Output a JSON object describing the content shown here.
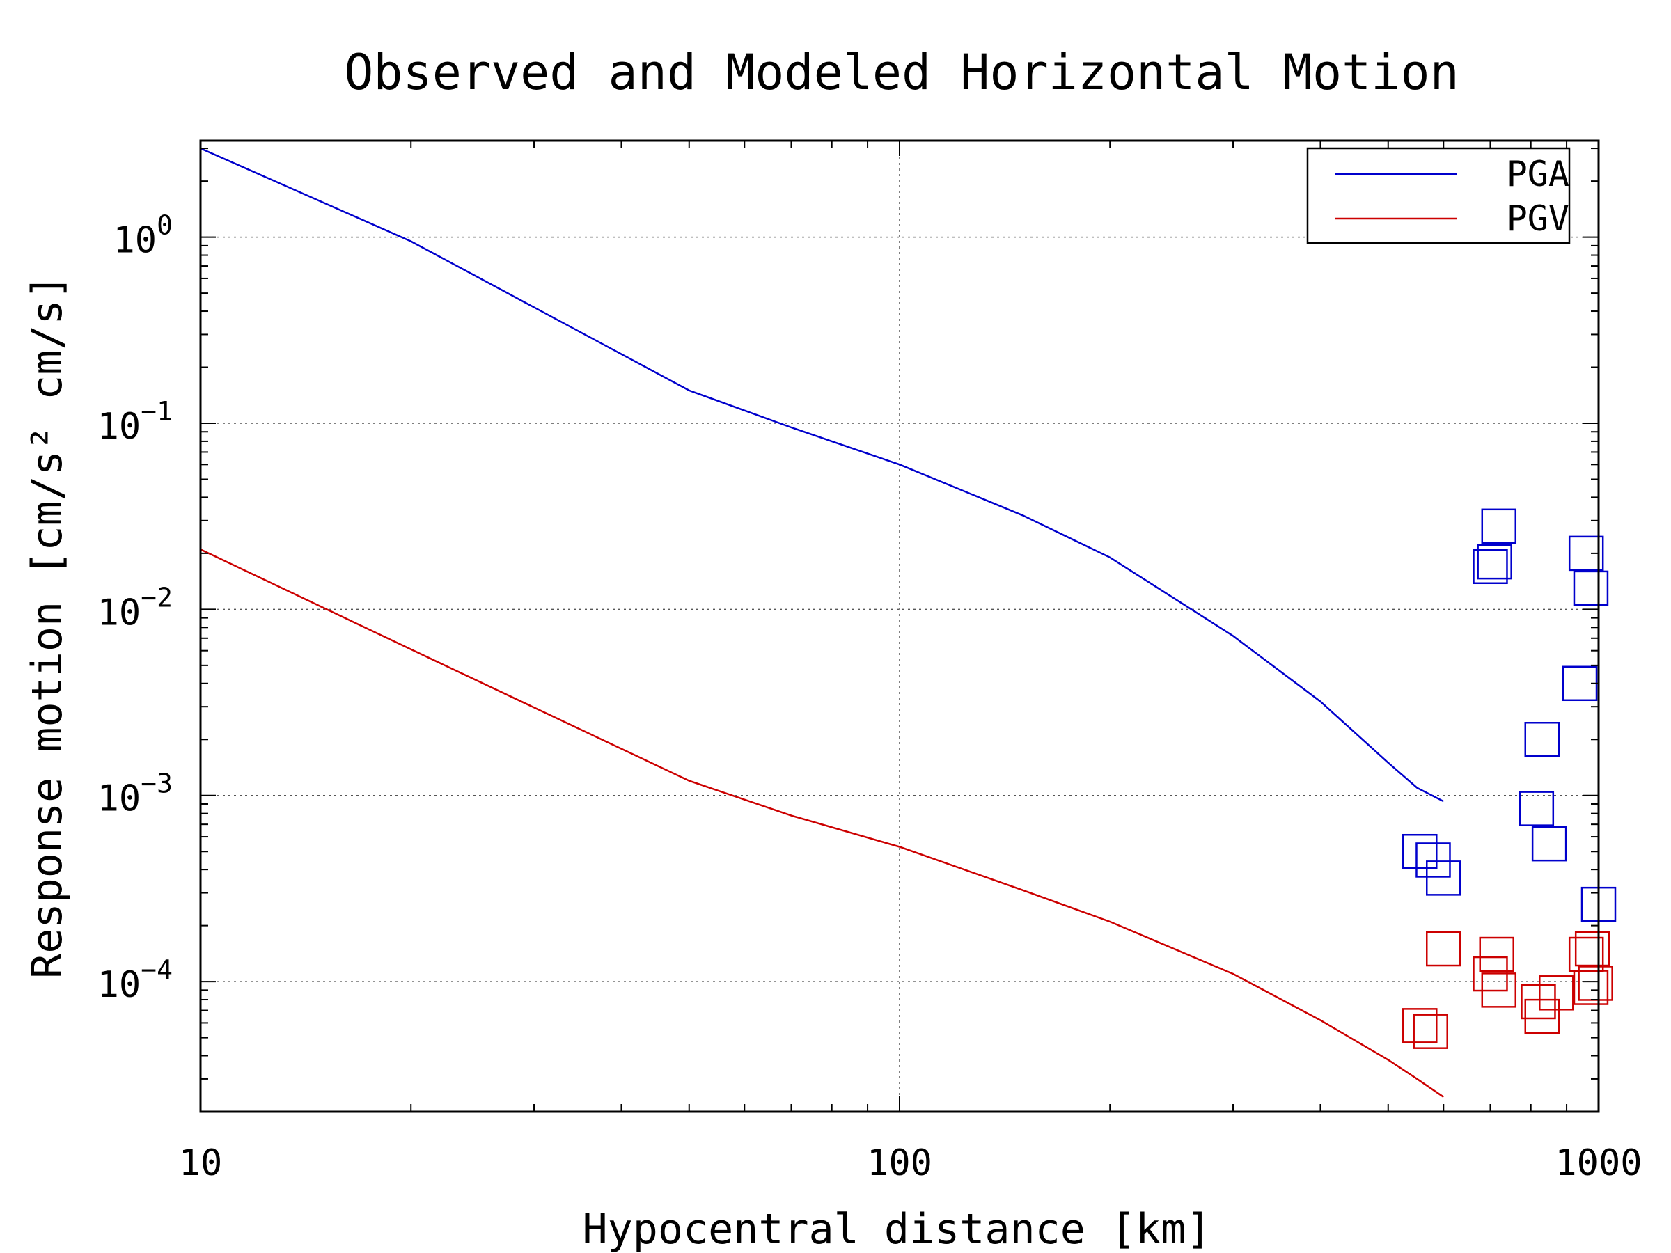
{
  "chart_data": {
    "type": "scatter",
    "title": "Observed and Modeled Horizontal Motion",
    "xlabel": "Hypocentral distance [km]",
    "ylabel": "Response motion [cm/s² cm/s]",
    "xscale": "log",
    "yscale": "log",
    "xlim": [
      10,
      1000
    ],
    "ylim": [
      2e-05,
      3.3
    ],
    "grid": true,
    "legend_position": "top-right",
    "x_ticks": [
      {
        "value": 10,
        "label": "10"
      },
      {
        "value": 100,
        "label": "100"
      },
      {
        "value": 1000,
        "label": "1000"
      }
    ],
    "y_ticks": [
      {
        "value": 1,
        "base": "10",
        "exp": "0"
      },
      {
        "value": 0.1,
        "base": "10",
        "exp": "−1"
      },
      {
        "value": 0.01,
        "base": "10",
        "exp": "−2"
      },
      {
        "value": 0.001,
        "base": "10",
        "exp": "−3"
      },
      {
        "value": 0.0001,
        "base": "10",
        "exp": "−4"
      }
    ],
    "series": [
      {
        "name": "PGA",
        "color": "#0000cc",
        "model": {
          "x": [
            10,
            20,
            50,
            70,
            100,
            150,
            200,
            300,
            400,
            500,
            550,
            600
          ],
          "y": [
            3.0,
            0.95,
            0.15,
            0.095,
            0.06,
            0.032,
            0.019,
            0.0072,
            0.0032,
            0.0015,
            0.0011,
            0.00093
          ]
        },
        "observed": {
          "x": [
            720,
            700,
            710,
            960,
            975,
            940,
            830,
            815,
            850,
            555,
            580,
            600,
            1000
          ],
          "y": [
            0.028,
            0.017,
            0.018,
            0.02,
            0.013,
            0.004,
            0.002,
            0.00085,
            0.00055,
            0.0005,
            0.00045,
            0.00036,
            0.00026
          ]
        }
      },
      {
        "name": "PGV",
        "color": "#cc0000",
        "model": {
          "x": [
            10,
            20,
            50,
            70,
            100,
            150,
            200,
            300,
            400,
            500,
            550,
            600
          ],
          "y": [
            0.021,
            0.0061,
            0.0012,
            0.00078,
            0.00053,
            0.00031,
            0.00021,
            0.00011,
            6.2e-05,
            3.8e-05,
            3e-05,
            2.4e-05
          ]
        },
        "observed": {
          "x": [
            600,
            715,
            700,
            720,
            960,
            980,
            820,
            830,
            870,
            975,
            990,
            555,
            575
          ],
          "y": [
            0.00015,
            0.00014,
            0.00011,
            9e-05,
            0.00014,
            0.00015,
            7.8e-05,
            6.5e-05,
            8.7e-05,
            9.3e-05,
            9.8e-05,
            5.8e-05,
            5.4e-05
          ]
        }
      }
    ]
  }
}
